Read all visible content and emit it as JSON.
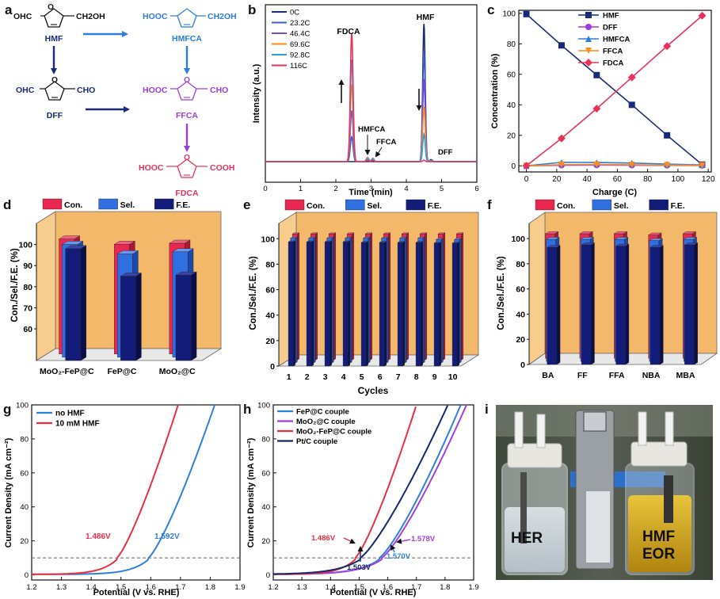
{
  "colors": {
    "hmf": "#1a2a7a",
    "dff": "#9b3fd8",
    "hmfca": "#2b7fd8",
    "ffca": "#ff8c1a",
    "fdca": "#e8325a",
    "con": "#e82850",
    "sel": "#2f6fe0",
    "fe": "#141c7a",
    "wall": "#f4b86a",
    "blueText": "#2a6fd0",
    "purpleText": "#9b3fd8",
    "red": "#e83040",
    "purple": "#a040e0",
    "blue": "#2f7fe0",
    "navy": "#16286e",
    "dash": "#666666"
  },
  "panel_labels": [
    "a",
    "b",
    "c",
    "d",
    "e",
    "f",
    "g",
    "h",
    "i"
  ],
  "scheme": {
    "hmf": {
      "name": "HMF",
      "left": "OHC",
      "right": "CH2OH"
    },
    "hmfca": {
      "name": "HMFCA",
      "left": "HOOC",
      "right": "CH2OH"
    },
    "dff": {
      "name": "DFF",
      "left": "OHC",
      "right": "CHO"
    },
    "ffca": {
      "name": "FFCA",
      "left": "HOOC",
      "right": "CHO"
    },
    "fdca": {
      "name": "FDCA",
      "left": "HOOC",
      "right": "COOH"
    },
    "ring_o": "O"
  },
  "chart_data": [
    {
      "id": "b",
      "type": "line",
      "xlabel": "Time (min)",
      "ylabel": "Intensity (a.u.)",
      "xlim": [
        0,
        6
      ],
      "xticks": [
        0,
        1,
        2,
        3,
        4,
        5,
        6
      ],
      "legend": [
        "0C",
        "23.2C",
        "46.4C",
        "69.6C",
        "92.8C",
        "116C"
      ],
      "peak_times": {
        "fdca": 2.45,
        "hmfca": 2.9,
        "ffca": 3.05,
        "hmf": 4.5,
        "dff": 4.7
      },
      "fdca_heights": [
        0.0,
        0.18,
        0.37,
        0.56,
        0.74,
        0.93
      ],
      "hmf_heights": [
        1.0,
        0.8,
        0.6,
        0.4,
        0.2,
        0.01
      ],
      "annotations": [
        "FDCA",
        "HMF",
        "HMFCA",
        "FFCA",
        "DFF"
      ]
    },
    {
      "id": "c",
      "type": "line",
      "xlabel": "Charge (C)",
      "ylabel": "Concentration (%)",
      "x": [
        0,
        23.2,
        46.4,
        69.6,
        92.8,
        116
      ],
      "xticks": [
        0,
        20,
        40,
        60,
        80,
        100,
        120
      ],
      "yticks": [
        0,
        20,
        40,
        60,
        80,
        100
      ],
      "xlim": [
        -5,
        122
      ],
      "ylim": [
        -4,
        102
      ],
      "series": [
        {
          "name": "HMF",
          "values": [
            99.5,
            79,
            59.5,
            40,
            20,
            0.8
          ]
        },
        {
          "name": "DFF",
          "values": [
            0,
            0.4,
            0.5,
            0.4,
            0.3,
            0.2
          ]
        },
        {
          "name": "HMFCA",
          "values": [
            0,
            2.3,
            2.2,
            1.8,
            1.2,
            0.6
          ]
        },
        {
          "name": "FFCA",
          "values": [
            0,
            0.8,
            0.9,
            0.7,
            0.5,
            0.3
          ]
        },
        {
          "name": "FDCA",
          "values": [
            0,
            18,
            37.5,
            58,
            78.5,
            98.5
          ]
        }
      ]
    },
    {
      "id": "d",
      "type": "bar",
      "ylabel": "Con./Sel./F.E. (%)",
      "yticks": [
        60,
        70,
        80,
        90,
        100
      ],
      "ylim": [
        45,
        110
      ],
      "legend": [
        "Con.",
        "Sel.",
        "F.E."
      ],
      "categories": [
        "MoO₂-FeP@C",
        "FeP@C",
        "MoO₂@C"
      ],
      "series": [
        {
          "name": "Con.",
          "values": [
            99.5,
            97,
            97.5
          ]
        },
        {
          "name": "Sel.",
          "values": [
            98.5,
            94,
            95
          ]
        },
        {
          "name": "F.E.",
          "values": [
            98,
            85,
            85.5
          ]
        }
      ]
    },
    {
      "id": "e",
      "type": "bar",
      "ylabel": "Con./Sel./F.E. (%)",
      "xlabel": "Cycles",
      "yticks": [
        0,
        20,
        40,
        60,
        80,
        100
      ],
      "ylim": [
        0,
        112
      ],
      "legend": [
        "Con.",
        "Sel.",
        "F.E."
      ],
      "categories": [
        "1",
        "2",
        "3",
        "4",
        "5",
        "6",
        "7",
        "8",
        "9",
        "10"
      ],
      "series": [
        {
          "name": "Con.",
          "values": [
            99,
            99,
            99,
            99,
            99,
            99,
            99,
            99,
            99,
            99
          ]
        },
        {
          "name": "Sel.",
          "values": [
            98,
            98,
            98,
            98,
            98,
            98,
            98,
            98,
            97,
            97
          ]
        },
        {
          "name": "F.E.",
          "values": [
            97.5,
            97.5,
            97.5,
            97.5,
            97,
            97,
            97,
            97,
            96.5,
            96.5
          ]
        }
      ]
    },
    {
      "id": "f",
      "type": "bar",
      "ylabel": "Con./Sel./F.E. (%)",
      "yticks": [
        0,
        20,
        40,
        60,
        80,
        100
      ],
      "ylim": [
        0,
        112
      ],
      "legend": [
        "Con.",
        "Sel.",
        "F.E."
      ],
      "categories": [
        "BA",
        "FF",
        "FFA",
        "NBA",
        "MBA"
      ],
      "series": [
        {
          "name": "Con.",
          "values": [
            99,
            99,
            99,
            98,
            99
          ]
        },
        {
          "name": "Sel.",
          "values": [
            97,
            97,
            97,
            96,
            97
          ]
        },
        {
          "name": "F.E.",
          "values": [
            93,
            95,
            94,
            93,
            95
          ]
        }
      ]
    },
    {
      "id": "g",
      "type": "line",
      "xlabel": "Potential (V vs. RHE)",
      "ylabel": "Current Density (mA cm⁻²)",
      "xlim": [
        1.2,
        1.9
      ],
      "ylim": [
        -3,
        100
      ],
      "xticks": [
        1.2,
        1.3,
        1.4,
        1.5,
        1.6,
        1.7,
        1.8,
        1.9
      ],
      "yticks": [
        0,
        20,
        40,
        60,
        80,
        100
      ],
      "dashed_y": 10,
      "series": [
        {
          "name": "no HMF",
          "onset": 1.592,
          "end": 1.815,
          "color": "blue"
        },
        {
          "name": "10 mM HMF",
          "onset": 1.486,
          "end": 1.692,
          "color": "red"
        }
      ],
      "labels": {
        "hmf": "1.486V",
        "nohmf": "1.592V"
      }
    },
    {
      "id": "h",
      "type": "line",
      "xlabel": "Potential (V vs. RHE)",
      "ylabel": "Current Density (mA cm⁻²)",
      "xlim": [
        1.2,
        1.9
      ],
      "ylim": [
        -3,
        100
      ],
      "xticks": [
        1.2,
        1.3,
        1.4,
        1.5,
        1.6,
        1.7,
        1.8,
        1.9
      ],
      "yticks": [
        0,
        20,
        40,
        60,
        80,
        100
      ],
      "dashed_y": 10,
      "series": [
        {
          "name": "FeP@C couple",
          "onset": 1.57,
          "end": 1.855,
          "color": "blue"
        },
        {
          "name": "MoO₂@C couple",
          "onset": 1.578,
          "end": 1.875,
          "color": "purple"
        },
        {
          "name": "MoO₂-FeP@C couple",
          "onset": 1.486,
          "end": 1.7,
          "color": "red"
        },
        {
          "name": "Pt/C couple",
          "onset": 1.503,
          "end": 1.81,
          "color": "navy"
        }
      ],
      "labels": {
        "l1486": "1.486V",
        "l1578": "1.578V",
        "l1570": "1.570V",
        "l1503": "1.503V"
      }
    }
  ],
  "photo": {
    "her": "HER",
    "hmf": "HMF",
    "eor": "EOR"
  }
}
